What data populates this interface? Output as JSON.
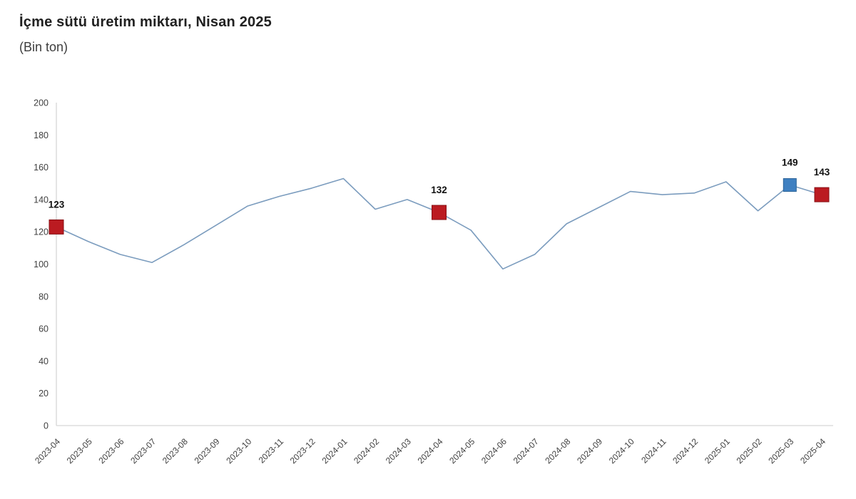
{
  "chart_data": {
    "type": "line",
    "title": "İçme sütü üretim miktarı, Nisan 2025",
    "subtitle": "(Bin ton)",
    "xlabel": "",
    "ylabel": "",
    "ylim": [
      0,
      200
    ],
    "yticks": [
      0,
      20,
      40,
      60,
      80,
      100,
      120,
      140,
      160,
      180,
      200
    ],
    "grid": false,
    "legend": "none",
    "x": [
      "2023-04",
      "2023-05",
      "2023-06",
      "2023-07",
      "2023-08",
      "2023-09",
      "2023-10",
      "2023-11",
      "2023-12",
      "2024-01",
      "2024-02",
      "2024-03",
      "2024-04",
      "2024-05",
      "2024-06",
      "2024-07",
      "2024-08",
      "2024-09",
      "2024-10",
      "2024-11",
      "2024-12",
      "2025-01",
      "2025-02",
      "2025-03",
      "2025-04"
    ],
    "values": [
      123,
      114,
      106,
      101,
      112,
      124,
      136,
      142,
      147,
      153,
      134,
      140,
      132,
      121,
      97,
      106,
      125,
      135,
      145,
      143,
      144,
      151,
      133,
      149,
      143
    ],
    "line_color": "#7b9cbe",
    "axis_color": "#d6d6d6",
    "tick_label_color": "#404040",
    "point_label_color": "#111111",
    "annotated_points": [
      {
        "x": "2023-04",
        "index": 0,
        "value": 123,
        "label": "123",
        "marker_color": "#bb1b21",
        "marker_edge": "#871016",
        "size": 20
      },
      {
        "x": "2024-04",
        "index": 12,
        "value": 132,
        "label": "132",
        "marker_color": "#bb1b21",
        "marker_edge": "#871016",
        "size": 20
      },
      {
        "x": "2025-03",
        "index": 23,
        "value": 149,
        "label": "149",
        "marker_color": "#3f80c1",
        "marker_edge": "#2b6399",
        "size": 18
      },
      {
        "x": "2025-04",
        "index": 24,
        "value": 143,
        "label": "143",
        "marker_color": "#bb1b21",
        "marker_edge": "#871016",
        "size": 20
      }
    ]
  }
}
